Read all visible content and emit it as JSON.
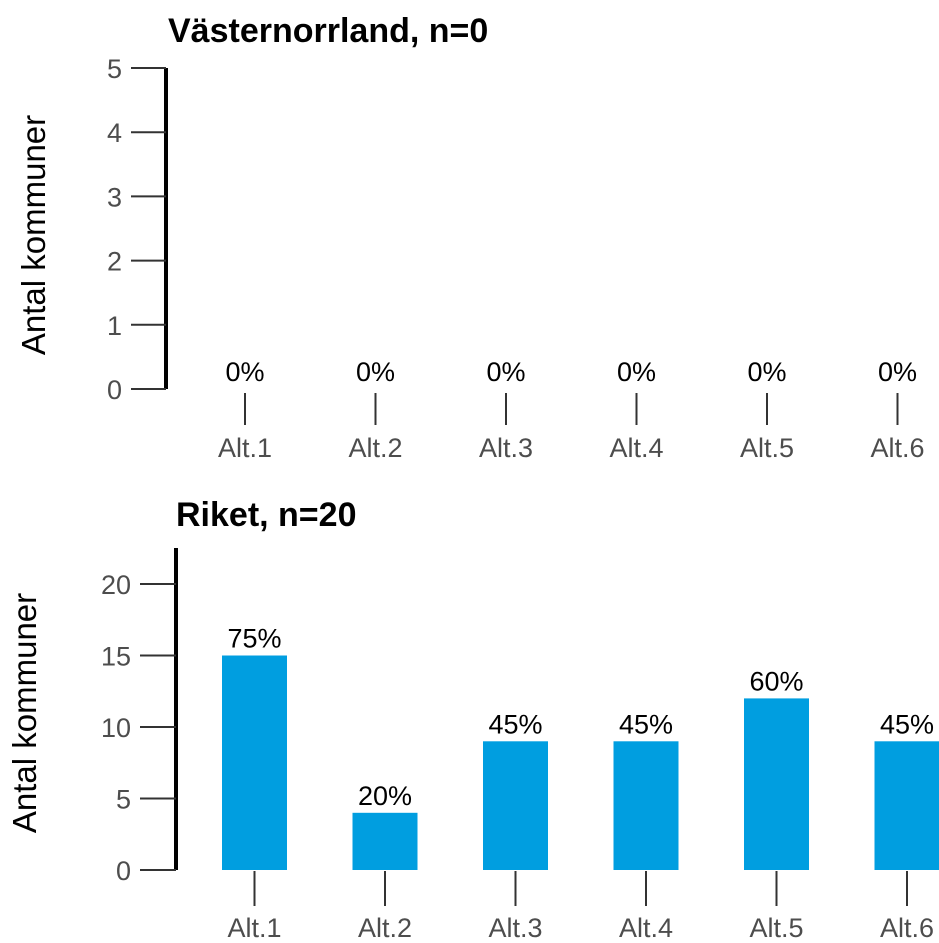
{
  "chart_data": [
    {
      "type": "bar",
      "title": "Västernorrland, n=0",
      "xlabel": "",
      "ylabel": "Antal kommuner",
      "categories": [
        "Alt.1",
        "Alt.2",
        "Alt.3",
        "Alt.4",
        "Alt.5",
        "Alt.6"
      ],
      "values": [
        0,
        0,
        0,
        0,
        0,
        0
      ],
      "data_labels": [
        "0%",
        "0%",
        "0%",
        "0%",
        "0%",
        "0%"
      ],
      "ylim": [
        0,
        5
      ],
      "yticks": [
        0,
        1,
        2,
        3,
        4,
        5
      ],
      "bar_color": "#009ee0",
      "grid": false
    },
    {
      "type": "bar",
      "title": "Riket, n=20",
      "xlabel": "",
      "ylabel": "Antal kommuner",
      "categories": [
        "Alt.1",
        "Alt.2",
        "Alt.3",
        "Alt.4",
        "Alt.5",
        "Alt.6"
      ],
      "values": [
        15,
        4,
        9,
        9,
        12,
        9
      ],
      "data_labels": [
        "75%",
        "20%",
        "45%",
        "45%",
        "60%",
        "45%"
      ],
      "ylim": [
        0,
        22
      ],
      "yticks": [
        0,
        5,
        10,
        15,
        20
      ],
      "bar_color": "#009ee0",
      "grid": false
    }
  ]
}
